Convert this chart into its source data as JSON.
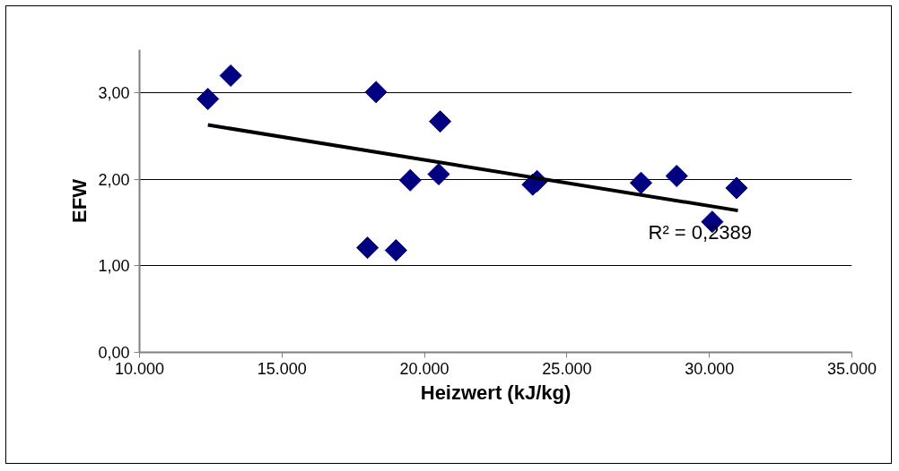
{
  "chart_data": {
    "type": "scatter",
    "xlabel": "Heizwert (kJ/kg)",
    "ylabel": "EFW",
    "xlim": [
      10000,
      35000
    ],
    "ylim": [
      0,
      3.5
    ],
    "xticks": [
      {
        "value": 10000,
        "label": "10.000"
      },
      {
        "value": 15000,
        "label": "15.000"
      },
      {
        "value": 20000,
        "label": "20.000"
      },
      {
        "value": 25000,
        "label": "25.000"
      },
      {
        "value": 30000,
        "label": "30.000"
      },
      {
        "value": 35000,
        "label": "35.000"
      }
    ],
    "yticks": [
      {
        "value": 0,
        "label": "0,00"
      },
      {
        "value": 1,
        "label": "1,00"
      },
      {
        "value": 2,
        "label": "2,00"
      },
      {
        "value": 3,
        "label": "3,00"
      }
    ],
    "grid": "y",
    "marker": "diamond",
    "series": [
      {
        "color": "#000080",
        "x": [
          12400,
          13200,
          18300,
          20550,
          19500,
          20500,
          18000,
          19000,
          23800,
          23950,
          27600,
          28850,
          30100,
          30950
        ],
        "values": [
          2.93,
          3.2,
          3.01,
          2.67,
          1.99,
          2.06,
          1.21,
          1.18,
          1.94,
          1.98,
          1.96,
          2.04,
          1.51,
          1.9
        ]
      },
      {
        "type": "line",
        "color": "#000000",
        "marker": "none",
        "x": [
          12400,
          31000
        ],
        "values": [
          2.63,
          1.64
        ]
      }
    ],
    "annotations": [
      "R² = 0,2389"
    ]
  }
}
